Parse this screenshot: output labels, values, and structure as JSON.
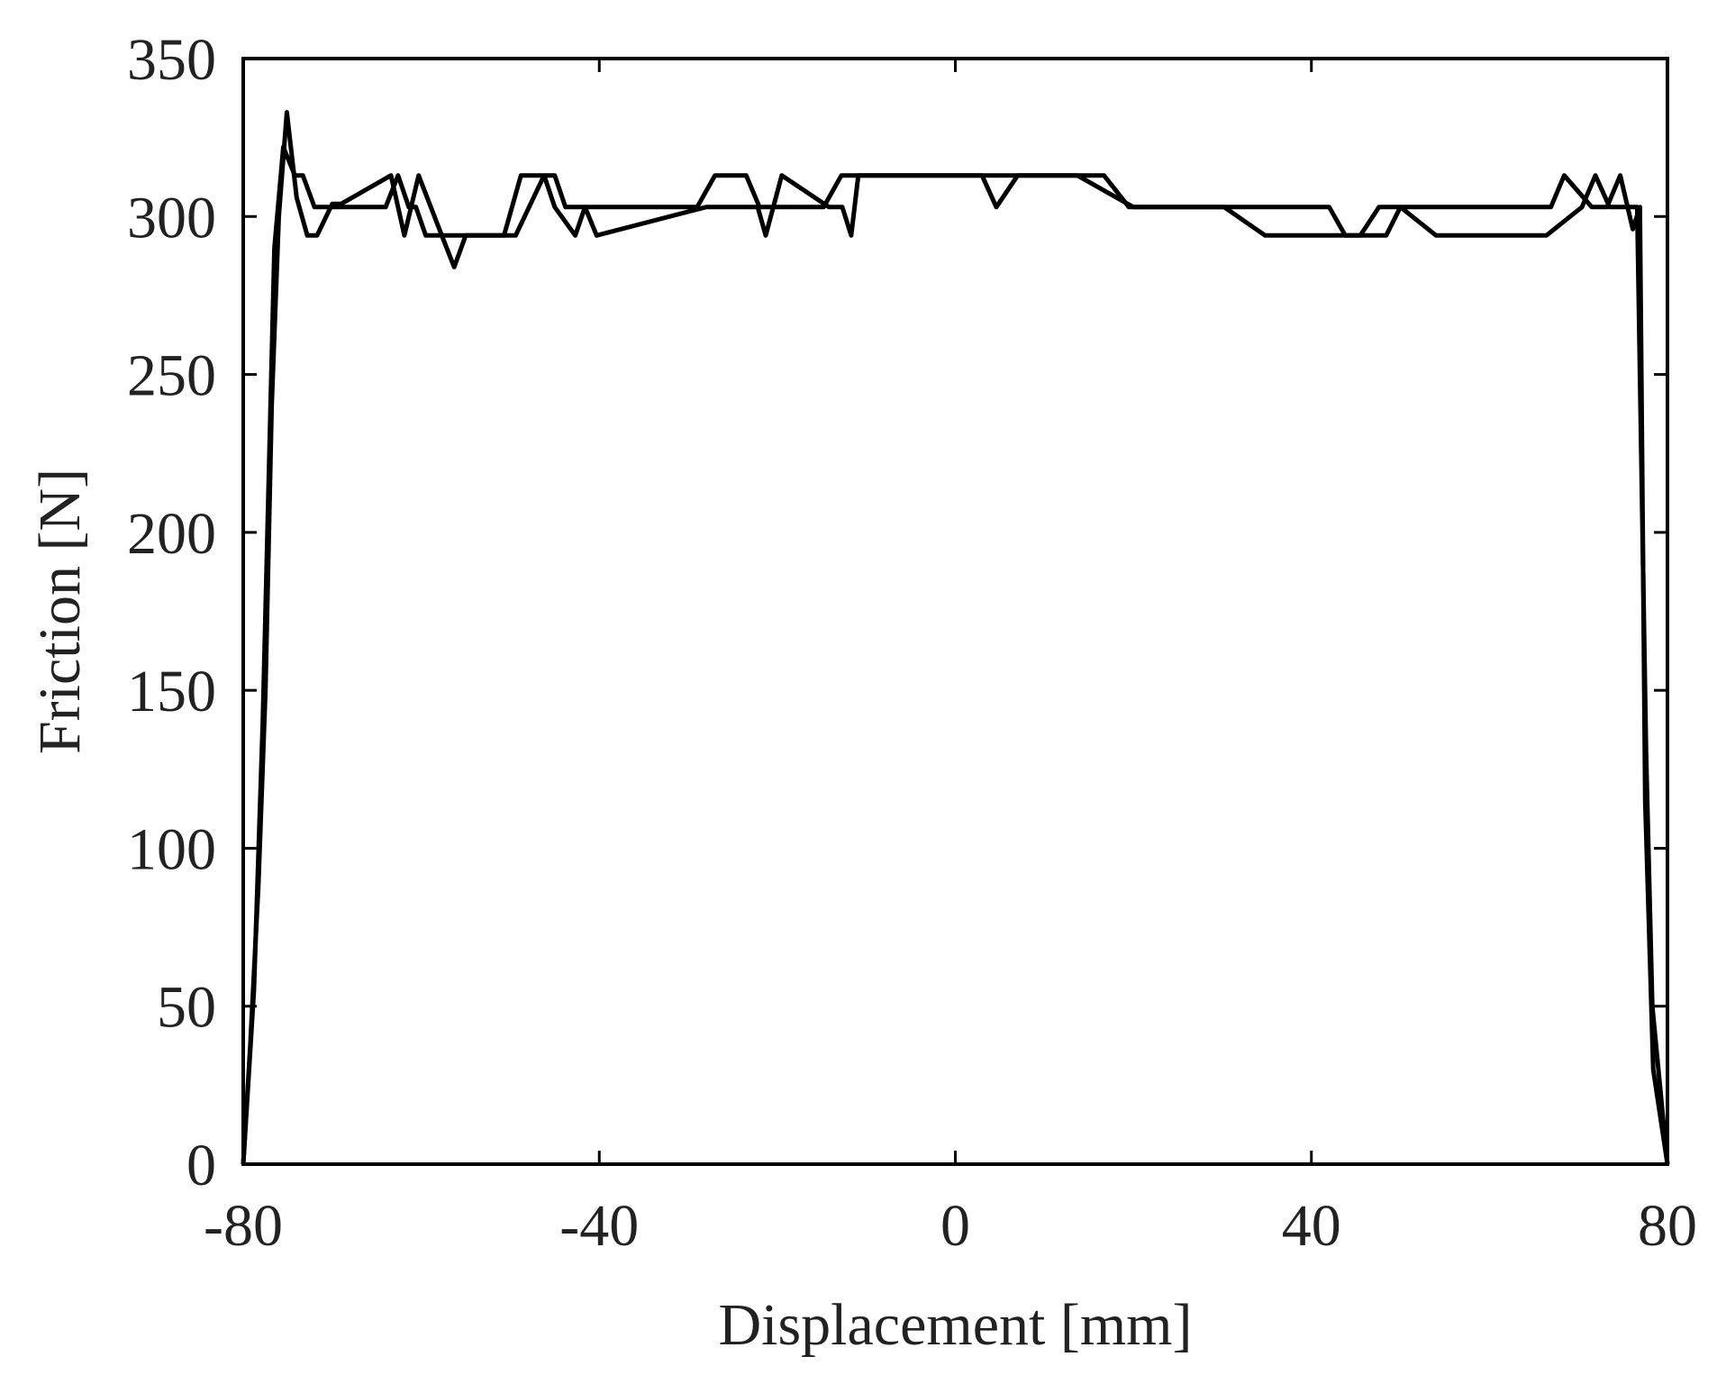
{
  "chart_data": {
    "type": "line",
    "title": "",
    "xlabel": "Displacement [mm]",
    "ylabel": "Friction [N]",
    "xlim": [
      -80,
      80
    ],
    "ylim": [
      0,
      350
    ],
    "xticks": [
      -80,
      -40,
      0,
      40,
      80
    ],
    "yticks": [
      0,
      50,
      100,
      150,
      200,
      250,
      300,
      350
    ],
    "xtick_labels": [
      "-80",
      "-40",
      "0",
      "40",
      "80"
    ],
    "ytick_labels": [
      "0",
      "50",
      "100",
      "150",
      "200",
      "250",
      "300",
      "350"
    ],
    "grid": false,
    "legend": "none",
    "line_color": "#000000",
    "series": [
      {
        "x": [
          -80,
          -78.8,
          -77.8,
          -76.5,
          -75.5,
          -74.2,
          -73.3,
          -72.0,
          -69.8,
          -64.0,
          -62.6,
          -61.4,
          -60.6,
          -59.5,
          -58.2,
          -56.3,
          -54.8,
          -50.7,
          -48.8,
          -45.0,
          -43.8,
          -29.0,
          -27.0,
          -23.5,
          -22.0,
          -14.8,
          -12.8,
          -5.0,
          -1.5,
          3.8,
          5.2,
          16.7,
          19.5,
          28.5,
          30.2,
          34.8,
          38.6,
          45.5,
          47.6,
          48.7,
          51.3,
          58.5,
          60.5,
          66.9,
          68.4,
          71.5,
          73.2,
          74.7,
          76.1,
          76.9,
          77.5,
          78.4,
          80.0
        ],
        "y": [
          0,
          55,
          140,
          290,
          322,
          313,
          313,
          303,
          303,
          303,
          313,
          303,
          303,
          294,
          294,
          294,
          294,
          294,
          313,
          313,
          303,
          303,
          313,
          313,
          303,
          303,
          313,
          313,
          313,
          313,
          313,
          313,
          303,
          303,
          303,
          294,
          294,
          294,
          303,
          303,
          303,
          303,
          303,
          303,
          313,
          303,
          303,
          313,
          296,
          303,
          115,
          30,
          0
        ]
      },
      {
        "x": [
          -80,
          -79.2,
          -78.3,
          -77.5,
          -76.8,
          -76.0,
          -75.1,
          -74.0,
          -72.8,
          -71.7,
          -70.0,
          -69.0,
          -63.4,
          -61.9,
          -60.3,
          -57.7,
          -56.3,
          -55.0,
          -51.0,
          -49.4,
          -46.2,
          -45.0,
          -42.7,
          -41.6,
          -40.3,
          -28.0,
          -26.6,
          -22.2,
          -21.3,
          -19.5,
          -14.2,
          -12.7,
          -11.7,
          -10.9,
          3.0,
          4.6,
          7.0,
          12.2,
          13.7,
          20.0,
          27.8,
          29.4,
          33.2,
          39.6,
          42.0,
          43.8,
          48.4,
          50.0,
          54.0,
          65.2,
          66.4,
          70.4,
          71.9,
          73.5,
          75.3,
          76.6,
          77.6,
          78.3,
          80.0
        ],
        "y": [
          0,
          38,
          88,
          150,
          240,
          300,
          333,
          306,
          294,
          294,
          304,
          304,
          313,
          294,
          313,
          294,
          284,
          294,
          294,
          294,
          313,
          303,
          294,
          303,
          294,
          303,
          303,
          303,
          294,
          313,
          303,
          303,
          294,
          313,
          313,
          303,
          313,
          313,
          313,
          303,
          303,
          303,
          303,
          303,
          303,
          294,
          294,
          303,
          294,
          294,
          294,
          303,
          313,
          303,
          303,
          303,
          130,
          50,
          0
        ]
      }
    ]
  }
}
